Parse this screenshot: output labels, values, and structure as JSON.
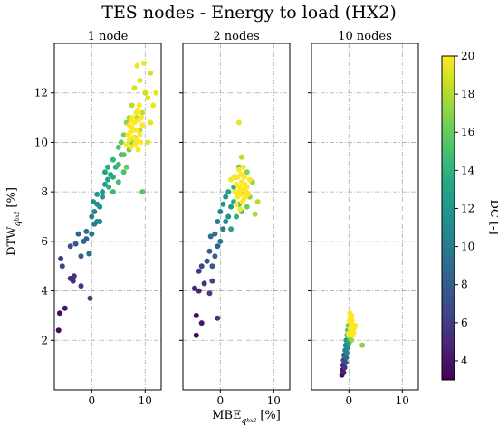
{
  "chart_data": {
    "type": "scatter",
    "title": "TES nodes - Energy to load (HX2)",
    "xlabel_main": "MBE",
    "xlabel_sub": "q",
    "xlabel_subsub": "hx2",
    "xlabel_unit": "[%]",
    "ylabel_main": "DTW",
    "ylabel_sub": "q",
    "ylabel_subsub": "hx2",
    "ylabel_unit": "[%]",
    "xlim": [
      -7,
      13
    ],
    "ylim": [
      0,
      14
    ],
    "xticks": [
      0,
      10
    ],
    "yticks": [
      2,
      4,
      6,
      8,
      10,
      12
    ],
    "grid": true,
    "colorbar": {
      "label": "DC [-]",
      "range": [
        3,
        20
      ],
      "ticks": [
        4,
        6,
        8,
        10,
        12,
        14,
        16,
        18,
        20
      ],
      "colormap": "viridis"
    },
    "panels": [
      {
        "title": "1 node",
        "points": [
          [
            -6.2,
            2.4,
            3.4
          ],
          [
            -6.0,
            3.1,
            3.6
          ],
          [
            -5.0,
            3.3,
            4.0
          ],
          [
            -4.0,
            4.5,
            5.2
          ],
          [
            -3.5,
            4.4,
            5.0
          ],
          [
            -3.3,
            4.6,
            5.5
          ],
          [
            -2.0,
            4.2,
            6.0
          ],
          [
            -0.3,
            3.7,
            6.3
          ],
          [
            -5.8,
            5.3,
            6.0
          ],
          [
            -5.5,
            5.0,
            6.8
          ],
          [
            -4.0,
            5.8,
            7.2
          ],
          [
            -3.0,
            5.9,
            7.5
          ],
          [
            -2.0,
            5.4,
            8.0
          ],
          [
            -1.5,
            6.0,
            8.3
          ],
          [
            -2.5,
            6.3,
            8.7
          ],
          [
            -1.0,
            6.1,
            8.5
          ],
          [
            -0.5,
            5.5,
            9.0
          ],
          [
            -1.0,
            6.4,
            9.2
          ],
          [
            0.0,
            6.3,
            9.5
          ],
          [
            0.5,
            6.7,
            10.0
          ],
          [
            0.0,
            7.0,
            10.3
          ],
          [
            1.0,
            6.8,
            10.5
          ],
          [
            1.5,
            6.8,
            11.0
          ],
          [
            0.5,
            7.2,
            11.0
          ],
          [
            1.0,
            7.5,
            11.3
          ],
          [
            0.3,
            7.6,
            11.5
          ],
          [
            1.5,
            7.4,
            11.8
          ],
          [
            2.0,
            7.8,
            12.0
          ],
          [
            1.0,
            7.9,
            12.0
          ],
          [
            2.0,
            8.0,
            12.3
          ],
          [
            2.5,
            8.3,
            12.5
          ],
          [
            3.0,
            8.5,
            12.8
          ],
          [
            2.5,
            8.8,
            13.0
          ],
          [
            3.5,
            8.7,
            13.2
          ],
          [
            3.0,
            9.0,
            13.4
          ],
          [
            4.0,
            8.6,
            13.5
          ],
          [
            3.2,
            8.2,
            13.8
          ],
          [
            4.5,
            9.0,
            14.0
          ],
          [
            4.0,
            9.3,
            14.2
          ],
          [
            5.0,
            9.1,
            14.5
          ],
          [
            4.0,
            8.0,
            14.5
          ],
          [
            5.0,
            8.4,
            14.8
          ],
          [
            5.5,
            9.5,
            15.0
          ],
          [
            6.0,
            8.8,
            15.2
          ],
          [
            5.0,
            9.8,
            15.5
          ],
          [
            6.0,
            9.5,
            15.5
          ],
          [
            6.5,
            9.0,
            15.8
          ],
          [
            5.5,
            10.0,
            16.0
          ],
          [
            7.0,
            9.7,
            16.2
          ],
          [
            6.0,
            10.3,
            16.5
          ],
          [
            9.5,
            8.0,
            15.5
          ],
          [
            7.5,
            10.0,
            16.8
          ],
          [
            6.5,
            10.8,
            17.0
          ],
          [
            8.0,
            10.2,
            17.2
          ],
          [
            7.0,
            11.0,
            17.5
          ],
          [
            8.5,
            11.0,
            17.8
          ],
          [
            9.0,
            10.5,
            18.0
          ],
          [
            7.5,
            11.5,
            18.2
          ],
          [
            9.5,
            11.2,
            18.5
          ],
          [
            10.0,
            12.0,
            18.8
          ],
          [
            8.0,
            12.2,
            19.0
          ],
          [
            9.0,
            12.5,
            19.2
          ],
          [
            10.5,
            11.8,
            19.3
          ],
          [
            11.5,
            11.5,
            19.5
          ],
          [
            8.5,
            13.1,
            19.5
          ],
          [
            9.8,
            13.2,
            19.8
          ],
          [
            11.0,
            12.8,
            19.0
          ],
          [
            12.0,
            12.0,
            19.6
          ],
          [
            10.5,
            10.0,
            19.2
          ],
          [
            11.0,
            10.8,
            19.4
          ],
          [
            6.5,
            9.9,
            20.0
          ],
          [
            7.0,
            10.1,
            20.0
          ],
          [
            7.2,
            10.4,
            20.0
          ],
          [
            7.5,
            10.6,
            20.0
          ],
          [
            7.8,
            10.2,
            20.0
          ],
          [
            8.0,
            10.8,
            20.0
          ],
          [
            8.2,
            10.0,
            20.0
          ],
          [
            8.5,
            10.5,
            20.0
          ],
          [
            8.8,
            10.9,
            20.0
          ],
          [
            9.0,
            10.3,
            20.0
          ],
          [
            7.0,
            10.7,
            20.0
          ],
          [
            7.6,
            11.0,
            20.0
          ],
          [
            8.3,
            11.2,
            20.0
          ],
          [
            8.9,
            11.5,
            20.0
          ],
          [
            9.3,
            11.0,
            20.0
          ],
          [
            7.3,
            9.8,
            20.0
          ],
          [
            8.1,
            9.9,
            20.0
          ],
          [
            8.7,
            9.7,
            20.0
          ],
          [
            6.8,
            10.3,
            20.0
          ],
          [
            9.5,
            10.7,
            20.0
          ],
          [
            7.9,
            10.5,
            20.0
          ],
          [
            8.4,
            10.1,
            20.0
          ],
          [
            7.4,
            10.9,
            20.0
          ],
          [
            8.6,
            11.3,
            20.0
          ],
          [
            9.1,
            10.0,
            20.0
          ]
        ]
      },
      {
        "title": "2 nodes",
        "points": [
          [
            -4.5,
            2.2,
            3.4
          ],
          [
            -4.5,
            3.0,
            3.6
          ],
          [
            -3.5,
            2.7,
            4.0
          ],
          [
            -4.8,
            4.1,
            4.5
          ],
          [
            -4.0,
            4.0,
            5.0
          ],
          [
            -0.5,
            2.9,
            5.8
          ],
          [
            -3.0,
            4.3,
            5.5
          ],
          [
            -2.0,
            3.9,
            6.2
          ],
          [
            -1.5,
            4.4,
            6.5
          ],
          [
            -4.0,
            4.8,
            6.0
          ],
          [
            -3.5,
            5.0,
            6.8
          ],
          [
            -2.5,
            5.2,
            7.2
          ],
          [
            -1.5,
            5.0,
            7.5
          ],
          [
            -2.0,
            5.6,
            8.0
          ],
          [
            -1.0,
            5.4,
            8.2
          ],
          [
            -0.5,
            5.8,
            8.5
          ],
          [
            -1.8,
            6.2,
            9.0
          ],
          [
            -1.0,
            6.3,
            9.3
          ],
          [
            0.0,
            6.0,
            9.5
          ],
          [
            0.5,
            6.5,
            10.0
          ],
          [
            -0.5,
            6.8,
            10.2
          ],
          [
            0.0,
            7.2,
            10.8
          ],
          [
            1.0,
            6.8,
            11.0
          ],
          [
            1.5,
            7.0,
            11.5
          ],
          [
            0.5,
            7.5,
            11.8
          ],
          [
            1.0,
            7.8,
            12.2
          ],
          [
            2.0,
            7.4,
            12.5
          ],
          [
            1.5,
            8.0,
            13.0
          ],
          [
            2.5,
            7.6,
            13.3
          ],
          [
            2.0,
            6.5,
            13.0
          ],
          [
            2.5,
            8.2,
            13.8
          ],
          [
            3.0,
            7.0,
            14.0
          ],
          [
            3.0,
            8.6,
            14.5
          ],
          [
            3.5,
            7.5,
            15.0
          ],
          [
            3.5,
            9.0,
            15.5
          ],
          [
            4.0,
            7.2,
            15.2
          ],
          [
            4.5,
            8.0,
            16.0
          ],
          [
            5.0,
            7.4,
            16.3
          ],
          [
            5.0,
            8.8,
            16.8
          ],
          [
            5.5,
            7.8,
            17.0
          ],
          [
            6.0,
            8.4,
            17.3
          ],
          [
            6.5,
            7.1,
            17.6
          ],
          [
            7.0,
            7.6,
            18.0
          ],
          [
            4.0,
            9.4,
            18.3
          ],
          [
            3.5,
            10.8,
            19.5
          ],
          [
            2.0,
            8.5,
            19.8
          ],
          [
            3.0,
            7.5,
            20.0
          ],
          [
            3.2,
            7.8,
            20.0
          ],
          [
            3.4,
            8.0,
            20.0
          ],
          [
            3.6,
            8.2,
            20.0
          ],
          [
            3.8,
            7.9,
            20.0
          ],
          [
            4.0,
            8.4,
            20.0
          ],
          [
            4.2,
            8.1,
            20.0
          ],
          [
            4.4,
            7.7,
            20.0
          ],
          [
            4.6,
            8.3,
            20.0
          ],
          [
            4.8,
            8.0,
            20.0
          ],
          [
            5.0,
            8.2,
            20.0
          ],
          [
            5.2,
            7.9,
            20.0
          ],
          [
            3.3,
            8.6,
            20.0
          ],
          [
            3.9,
            8.7,
            20.0
          ],
          [
            4.5,
            8.6,
            20.0
          ],
          [
            2.8,
            8.0,
            20.0
          ],
          [
            3.0,
            8.3,
            20.0
          ],
          [
            4.1,
            7.6,
            20.0
          ],
          [
            4.7,
            7.8,
            20.0
          ],
          [
            3.5,
            8.9,
            20.0
          ],
          [
            2.6,
            8.6,
            20.0
          ],
          [
            5.5,
            8.5,
            20.0
          ],
          [
            3.7,
            7.3,
            20.0
          ],
          [
            4.3,
            9.0,
            20.0
          ]
        ]
      },
      {
        "title": "10 nodes",
        "points": [
          [
            -1.3,
            0.6,
            3.5
          ],
          [
            -1.2,
            0.8,
            4.0
          ],
          [
            -1.0,
            0.7,
            4.5
          ],
          [
            -1.1,
            1.0,
            5.0
          ],
          [
            -0.8,
            0.9,
            5.5
          ],
          [
            -1.0,
            1.2,
            6.5
          ],
          [
            -0.6,
            1.1,
            7.0
          ],
          [
            -0.9,
            1.4,
            8.0
          ],
          [
            -0.5,
            1.3,
            9.0
          ],
          [
            -0.7,
            1.6,
            10.0
          ],
          [
            -0.4,
            1.5,
            10.5
          ],
          [
            -0.6,
            1.8,
            11.0
          ],
          [
            -0.2,
            1.7,
            11.5
          ],
          [
            -0.5,
            2.0,
            12.0
          ],
          [
            0.0,
            1.9,
            12.5
          ],
          [
            -0.3,
            2.2,
            13.0
          ],
          [
            0.0,
            2.0,
            13.5
          ],
          [
            0.1,
            2.3,
            14.0
          ],
          [
            -0.2,
            2.4,
            15.0
          ],
          [
            0.2,
            2.1,
            15.5
          ],
          [
            0.3,
            2.4,
            16.0
          ],
          [
            -0.1,
            2.6,
            16.5
          ],
          [
            2.5,
            1.8,
            17.0
          ],
          [
            0.5,
            2.0,
            17.5
          ],
          [
            0.0,
            2.3,
            20.0
          ],
          [
            0.2,
            2.5,
            20.0
          ],
          [
            0.4,
            2.7,
            20.0
          ],
          [
            0.6,
            2.4,
            20.0
          ],
          [
            0.8,
            2.6,
            20.0
          ],
          [
            0.3,
            2.9,
            20.0
          ],
          [
            0.5,
            3.0,
            20.0
          ],
          [
            0.1,
            2.8,
            20.0
          ],
          [
            0.7,
            2.2,
            20.0
          ],
          [
            1.0,
            2.5,
            20.0
          ],
          [
            -0.1,
            2.2,
            20.0
          ],
          [
            0.4,
            2.3,
            20.0
          ],
          [
            0.2,
            3.1,
            20.0
          ],
          [
            0.6,
            2.8,
            20.0
          ],
          [
            1.2,
            2.6,
            20.0
          ],
          [
            0.9,
            2.3,
            20.0
          ]
        ]
      }
    ]
  }
}
